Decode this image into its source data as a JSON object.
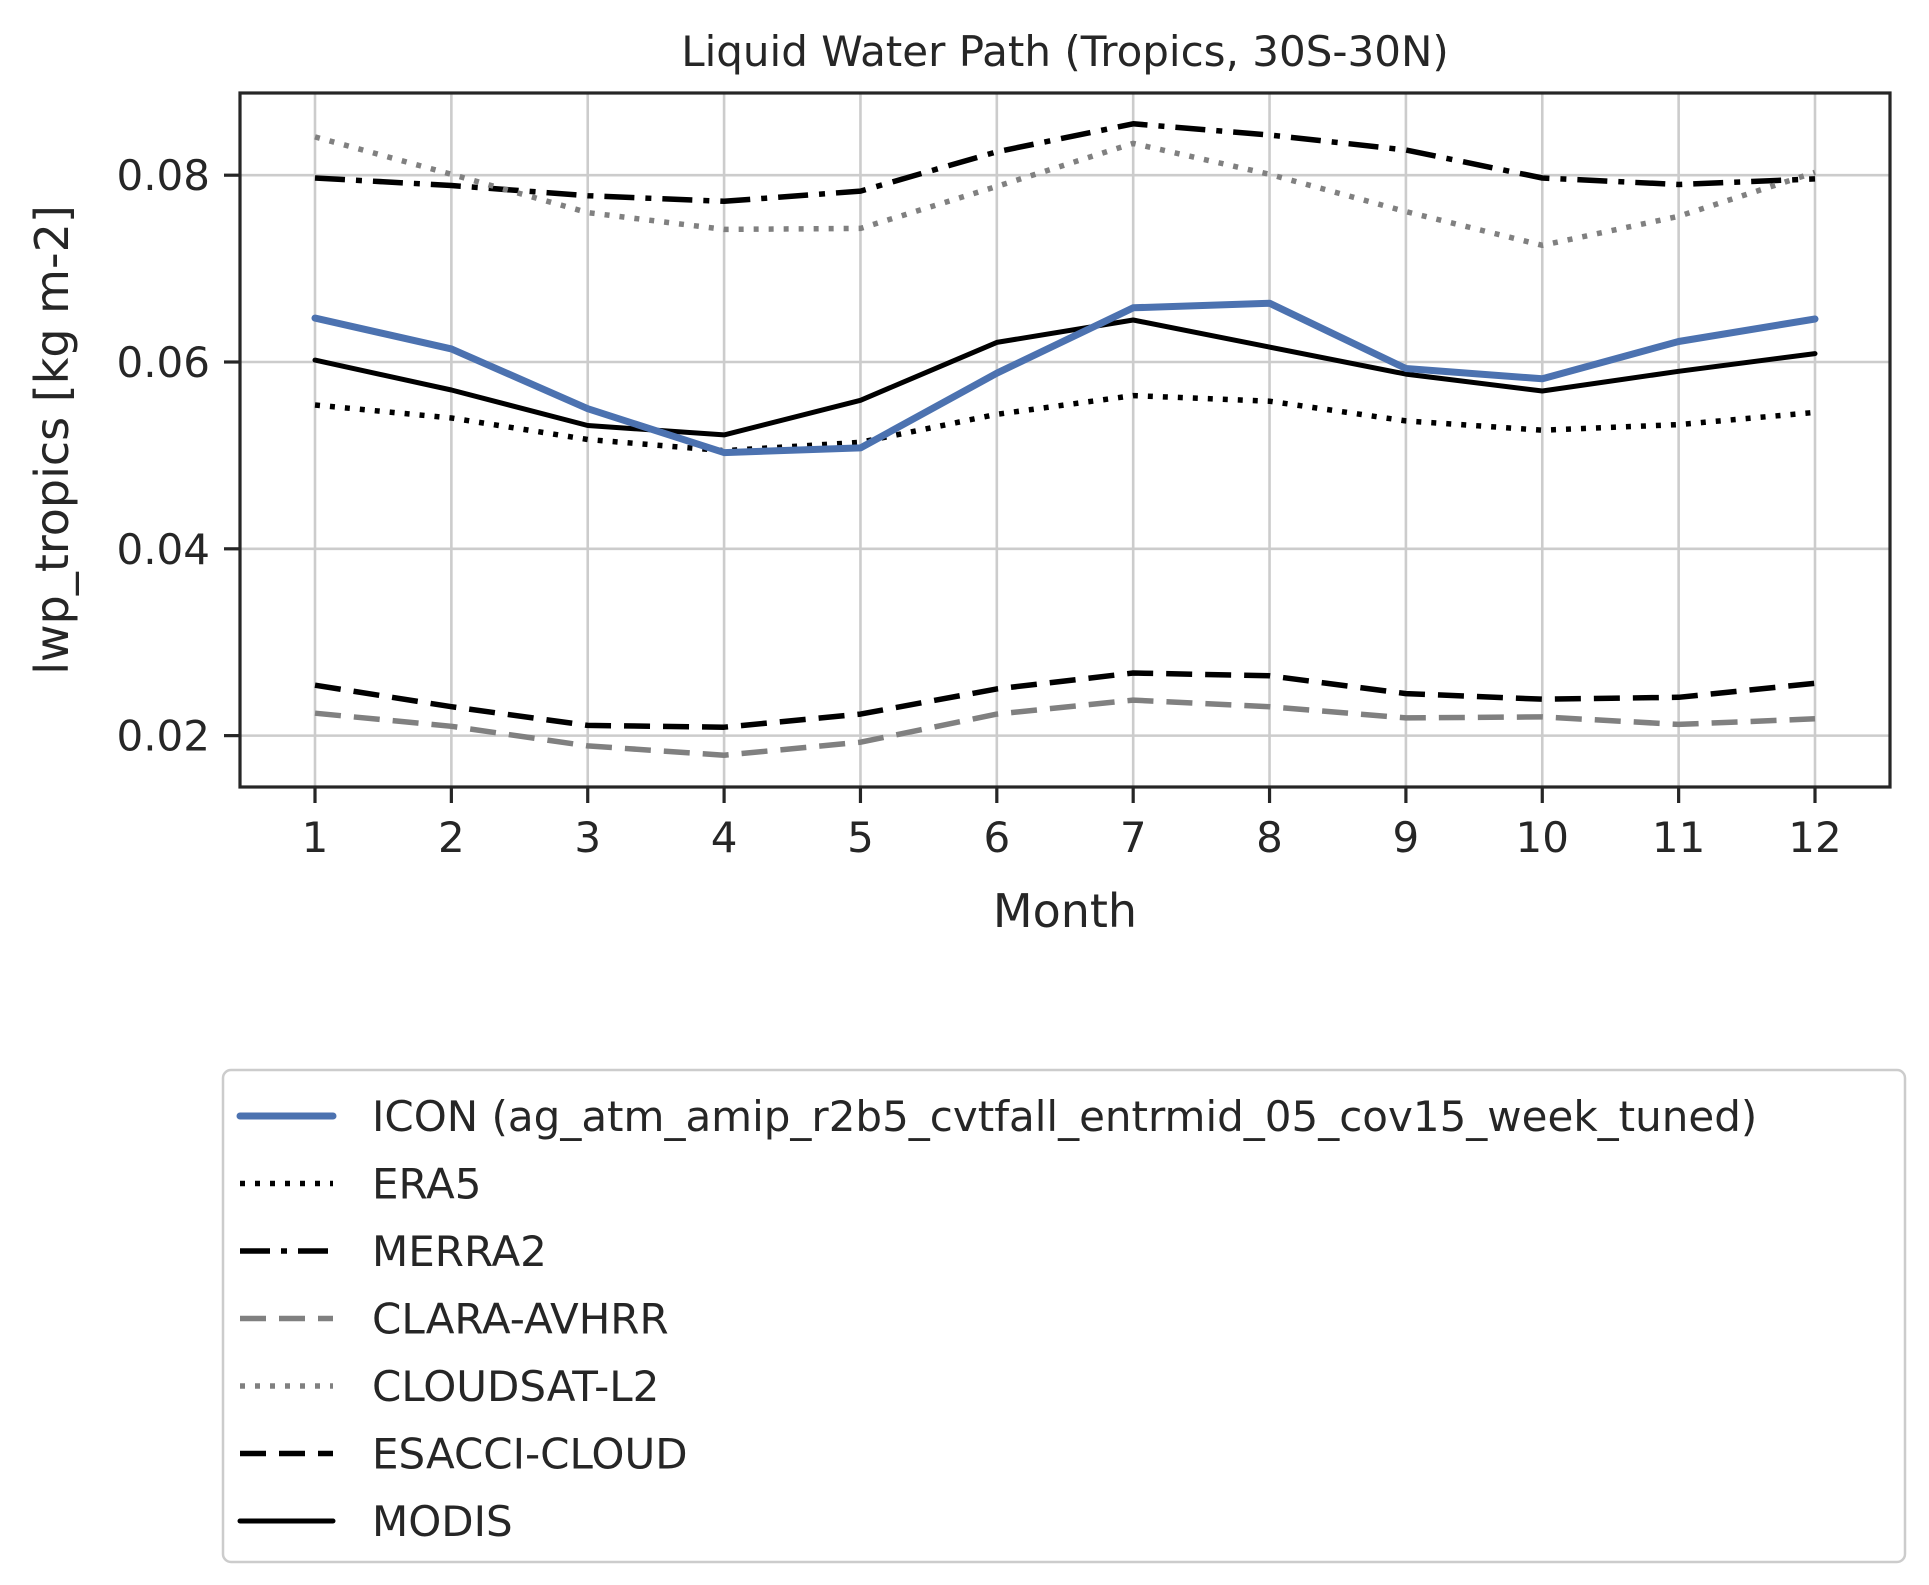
{
  "chart_data": {
    "type": "line",
    "title": "Liquid Water Path (Tropics, 30S-30N)",
    "xlabel": "Month",
    "ylabel": "lwp_tropics [kg m-2]",
    "x": [
      1,
      2,
      3,
      4,
      5,
      6,
      7,
      8,
      9,
      10,
      11,
      12
    ],
    "xlim": [
      0.45,
      12.55
    ],
    "ylim": [
      0.0145,
      0.0888
    ],
    "yticks": [
      0.02,
      0.04,
      0.06,
      0.08
    ],
    "ytick_labels": [
      "0.02",
      "0.04",
      "0.06",
      "0.08"
    ],
    "xtick_labels": [
      "1",
      "2",
      "3",
      "4",
      "5",
      "6",
      "7",
      "8",
      "9",
      "10",
      "11",
      "12"
    ],
    "grid": true,
    "legend_position": "below chart",
    "series": [
      {
        "name": "ICON (ag_atm_amip_r2b5_cvtfall_entrmid_05_cov15_week_tuned)",
        "color": "#4c72b0",
        "style": "solid-thick",
        "values": [
          0.0647,
          0.0614,
          0.055,
          0.0503,
          0.0508,
          0.0588,
          0.0658,
          0.0663,
          0.0593,
          0.0582,
          0.0622,
          0.0646
        ]
      },
      {
        "name": "ERA5",
        "color": "#000000",
        "style": "dotted",
        "values": [
          0.0554,
          0.054,
          0.0517,
          0.0505,
          0.0514,
          0.0544,
          0.0564,
          0.0558,
          0.0537,
          0.0527,
          0.0533,
          0.0546
        ]
      },
      {
        "name": "MERRA2",
        "color": "#000000",
        "style": "dashdot",
        "values": [
          0.0797,
          0.0789,
          0.0778,
          0.0772,
          0.0783,
          0.0825,
          0.0855,
          0.0843,
          0.0827,
          0.0797,
          0.079,
          0.0796
        ]
      },
      {
        "name": "CLARA-AVHRR",
        "color": "#808080",
        "style": "dashed",
        "values": [
          0.0224,
          0.021,
          0.0189,
          0.0179,
          0.0193,
          0.0223,
          0.0238,
          0.0231,
          0.0219,
          0.022,
          0.0212,
          0.0218
        ]
      },
      {
        "name": "CLOUDSAT-L2",
        "color": "#808080",
        "style": "dotted",
        "values": [
          0.0841,
          0.0801,
          0.076,
          0.0742,
          0.0743,
          0.0788,
          0.0834,
          0.0801,
          0.0761,
          0.0725,
          0.0756,
          0.0803
        ]
      },
      {
        "name": "ESACCI-CLOUD",
        "color": "#000000",
        "style": "dashed",
        "values": [
          0.0254,
          0.0231,
          0.0211,
          0.0209,
          0.0223,
          0.025,
          0.0267,
          0.0264,
          0.0245,
          0.0239,
          0.0241,
          0.0256
        ]
      },
      {
        "name": "MODIS",
        "color": "#000000",
        "style": "solid",
        "values": [
          0.0602,
          0.057,
          0.0532,
          0.0522,
          0.0559,
          0.0621,
          0.0645,
          0.0616,
          0.0587,
          0.0569,
          0.059,
          0.0609
        ]
      }
    ]
  }
}
